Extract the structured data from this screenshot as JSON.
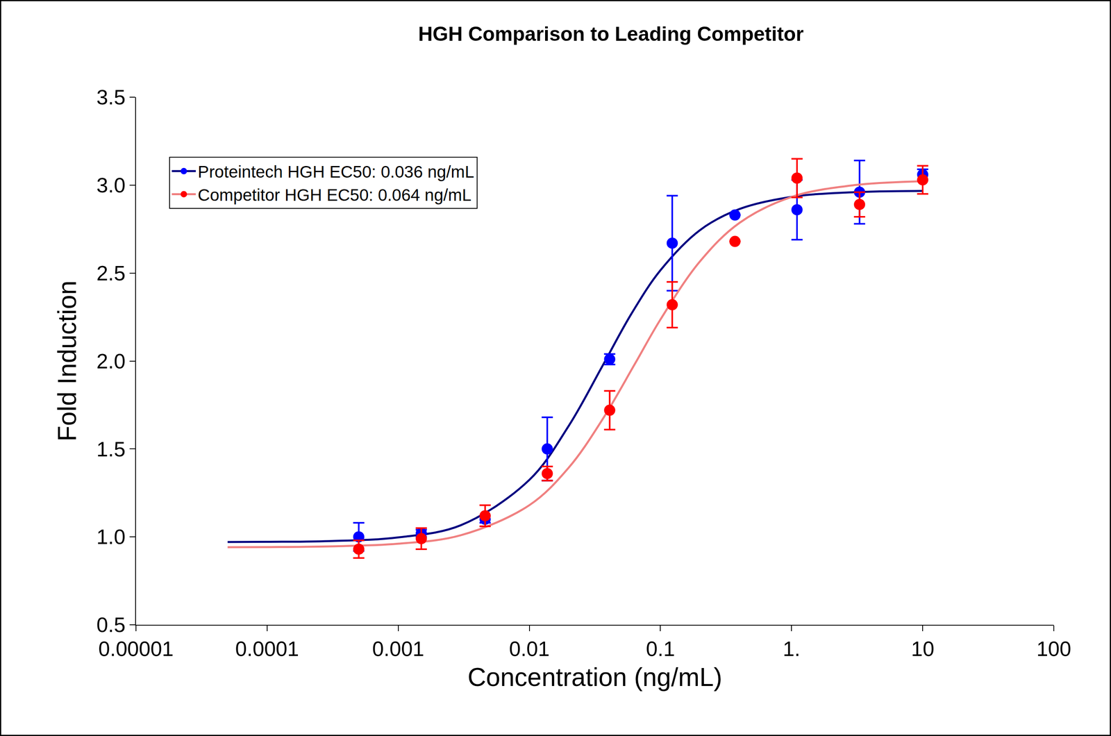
{
  "chart_data": {
    "type": "scatter",
    "title": "HGH Comparison to Leading Competitor",
    "x_label": "Concentration (ng/mL)",
    "y_label": "Fold Induction",
    "log": "x",
    "xlim": [
      1e-05,
      100
    ],
    "xticks": [
      1e-05,
      0.0001,
      0.001,
      0.01,
      0.1,
      {
        "value": 1,
        "label": "1."
      },
      10,
      100
    ],
    "ylim": [
      0.5,
      3.5
    ],
    "yticks": [
      {
        "value": 0.5,
        "label": "0.5"
      },
      {
        "value": 1,
        "label": "1.0"
      },
      {
        "value": 1.5,
        "label": "1.5"
      },
      {
        "value": 2,
        "label": "2.0"
      },
      {
        "value": 2.5,
        "label": "2.5"
      },
      {
        "value": 3,
        "label": "3.0"
      },
      {
        "value": 3.5,
        "label": "3.5"
      }
    ],
    "grid": false,
    "legend": "upper left",
    "series": [
      {
        "name": "Proteintech HGH EC50: 0.036 ng/mL",
        "color": "#0000ff",
        "line_color": "#000080",
        "marker": "circle",
        "x": [
          0.0005,
          0.0015,
          0.0046,
          0.0137,
          0.041,
          0.123,
          0.37,
          1.1,
          3.3,
          10
        ],
        "values": [
          1.0,
          1.02,
          1.1,
          1.5,
          2.01,
          2.67,
          2.83,
          2.86,
          2.96,
          3.06
        ],
        "error": [
          0.08,
          0.02,
          0.02,
          0.18,
          0.03,
          0.27,
          0,
          0.17,
          0.18,
          0.03
        ],
        "curve_x": [
          5e-05,
          0.0001,
          0.0003,
          0.001,
          0.003,
          0.01,
          0.02,
          0.036,
          0.06,
          0.1,
          0.2,
          0.4,
          1,
          3,
          10
        ],
        "curve_y": [
          0.971,
          0.972,
          0.976,
          0.997,
          1.066,
          1.324,
          1.632,
          1.97,
          2.268,
          2.516,
          2.744,
          2.864,
          2.933,
          2.96,
          2.967
        ],
        "ec50": 0.036,
        "ec50_y": 1.985
      },
      {
        "name": "Competitor HGH EC50: 0.064 ng/mL",
        "color": "#ff0000",
        "line_color": "#f08080",
        "marker": "circle",
        "x": [
          0.0005,
          0.0015,
          0.0046,
          0.0137,
          0.041,
          0.123,
          0.37,
          1.1,
          3.3,
          10
        ],
        "values": [
          0.93,
          0.99,
          1.12,
          1.36,
          1.72,
          2.32,
          2.68,
          3.04,
          2.89,
          3.03
        ],
        "error": [
          0.05,
          0.06,
          0.06,
          0.04,
          0.11,
          0.13,
          0,
          0.11,
          0.07,
          0.08
        ],
        "curve_x": [
          5e-05,
          0.0001,
          0.0003,
          0.001,
          0.003,
          0.01,
          0.02,
          0.036,
          0.064,
          0.1,
          0.2,
          0.4,
          1,
          3,
          10
        ],
        "curve_y": [
          0.941,
          0.942,
          0.946,
          0.961,
          1.009,
          1.18,
          1.394,
          1.666,
          1.985,
          2.236,
          2.566,
          2.785,
          2.933,
          3.0,
          3.022
        ],
        "ec50": 0.064,
        "ec50_y": 1.975
      }
    ]
  }
}
